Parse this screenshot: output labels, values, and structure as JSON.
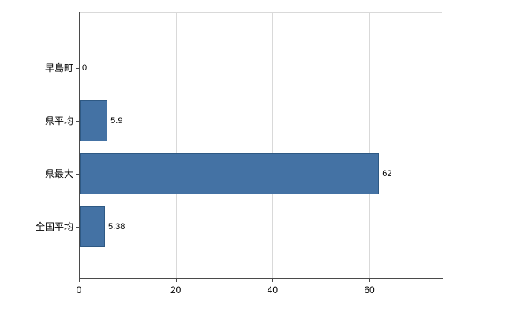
{
  "chart_data": {
    "type": "bar",
    "orientation": "horizontal",
    "title": "",
    "xlabel": "",
    "ylabel": "",
    "categories": [
      "早島町",
      "県平均",
      "県最大",
      "全国平均"
    ],
    "values": [
      0,
      5.9,
      62,
      5.38
    ],
    "value_labels": [
      "0",
      "5.9",
      "62",
      "5.38"
    ],
    "xlim": [
      0,
      75
    ],
    "xticks": [
      0,
      20,
      40,
      60
    ],
    "grid": "vertical-major",
    "legend": "none",
    "colors": {
      "bar_fill": "#4472a4",
      "bar_border": "#2e5984",
      "axis": "#4a4a4a",
      "gridline": "#d9d9d9",
      "background": "#ffffff",
      "text": "#000000"
    }
  }
}
